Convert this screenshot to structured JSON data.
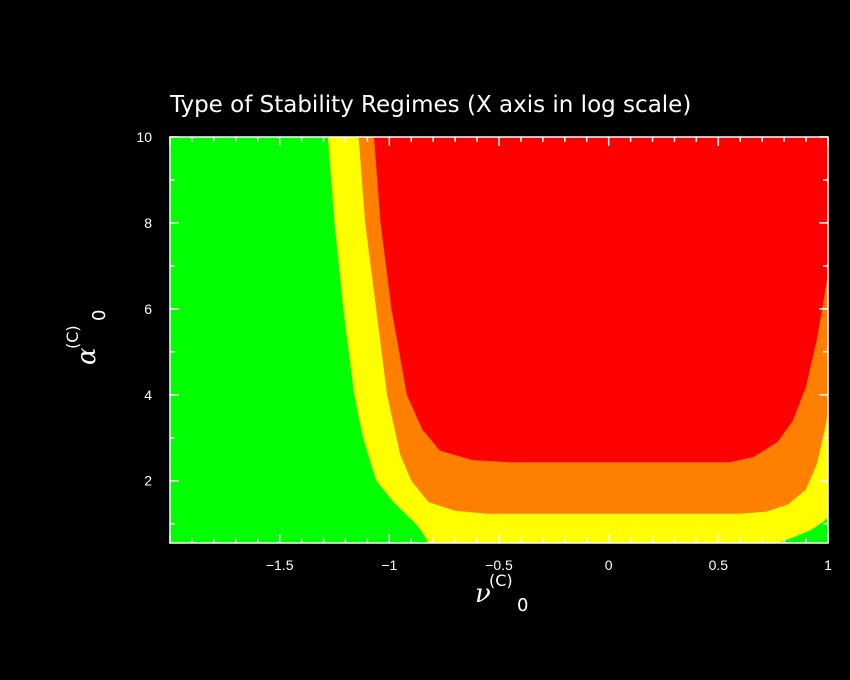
{
  "chart_data": {
    "type": "heatmap",
    "title": "Type of Stability Regimes (X axis in log scale)",
    "xlabel": {
      "symbol": "ν",
      "superscript": "(C)",
      "subscript": "0"
    },
    "ylabel": {
      "symbol": "α",
      "superscript": "(C)",
      "subscript": "0"
    },
    "x_scale": "log10",
    "xlim": [
      -2.0,
      1.0
    ],
    "ylim": [
      0.55,
      10
    ],
    "x_ticks": [
      {
        "value": -1.5,
        "label": "−1.5"
      },
      {
        "value": -1.0,
        "label": "−1"
      },
      {
        "value": -0.5,
        "label": "−0.5"
      },
      {
        "value": 0.0,
        "label": "0"
      },
      {
        "value": 0.5,
        "label": "0.5"
      },
      {
        "value": 1.0,
        "label": "1"
      }
    ],
    "y_ticks": [
      {
        "value": 2,
        "label": "2"
      },
      {
        "value": 4,
        "label": "4"
      },
      {
        "value": 6,
        "label": "6"
      },
      {
        "value": 8,
        "label": "8"
      },
      {
        "value": 10,
        "label": "10"
      }
    ],
    "regions": [
      {
        "color": "#00ff00"
      },
      {
        "color": "#ffff00"
      },
      {
        "color": "#ff7f00"
      },
      {
        "color": "#ff0000"
      }
    ],
    "boundaries": [
      {
        "between": [
          "#00ff00",
          "#ffff00"
        ],
        "points": [
          [
            -1.28,
            10
          ],
          [
            -1.25,
            8
          ],
          [
            -1.21,
            6
          ],
          [
            -1.16,
            4
          ],
          [
            -1.12,
            3
          ],
          [
            -1.06,
            2
          ],
          [
            -0.98,
            1.5
          ],
          [
            -0.88,
            1.0
          ],
          [
            -0.85,
            0.8
          ],
          [
            -0.82,
            0.55
          ]
        ],
        "points_right": [
          [
            0.77,
            0.55
          ],
          [
            0.85,
            0.7
          ],
          [
            0.92,
            0.85
          ],
          [
            0.98,
            1.05
          ],
          [
            1.0,
            1.15
          ]
        ]
      },
      {
        "between": [
          "#ffff00",
          "#ff7f00"
        ],
        "points": [
          [
            -1.14,
            10
          ],
          [
            -1.11,
            8
          ],
          [
            -1.06,
            6
          ],
          [
            -1.01,
            4
          ],
          [
            -0.95,
            2.6
          ],
          [
            -0.9,
            2.0
          ],
          [
            -0.82,
            1.5
          ],
          [
            -0.7,
            1.3
          ],
          [
            -0.55,
            1.23
          ],
          [
            0.6,
            1.23
          ],
          [
            0.72,
            1.28
          ],
          [
            0.82,
            1.45
          ],
          [
            0.9,
            1.8
          ],
          [
            0.95,
            2.4
          ],
          [
            0.99,
            3.3
          ],
          [
            1.0,
            3.6
          ]
        ]
      },
      {
        "between": [
          "#ff7f00",
          "#ff0000"
        ],
        "points": [
          [
            -1.07,
            10
          ],
          [
            -1.04,
            8
          ],
          [
            -0.99,
            6
          ],
          [
            -0.92,
            4
          ],
          [
            -0.85,
            3.2
          ],
          [
            -0.77,
            2.7
          ],
          [
            -0.62,
            2.48
          ],
          [
            -0.45,
            2.43
          ],
          [
            0.55,
            2.43
          ],
          [
            0.66,
            2.55
          ],
          [
            0.77,
            2.9
          ],
          [
            0.84,
            3.4
          ],
          [
            0.9,
            4.2
          ],
          [
            0.95,
            5.3
          ],
          [
            0.99,
            6.5
          ],
          [
            1.0,
            6.8
          ]
        ]
      }
    ],
    "grid": false,
    "legend": "none"
  }
}
